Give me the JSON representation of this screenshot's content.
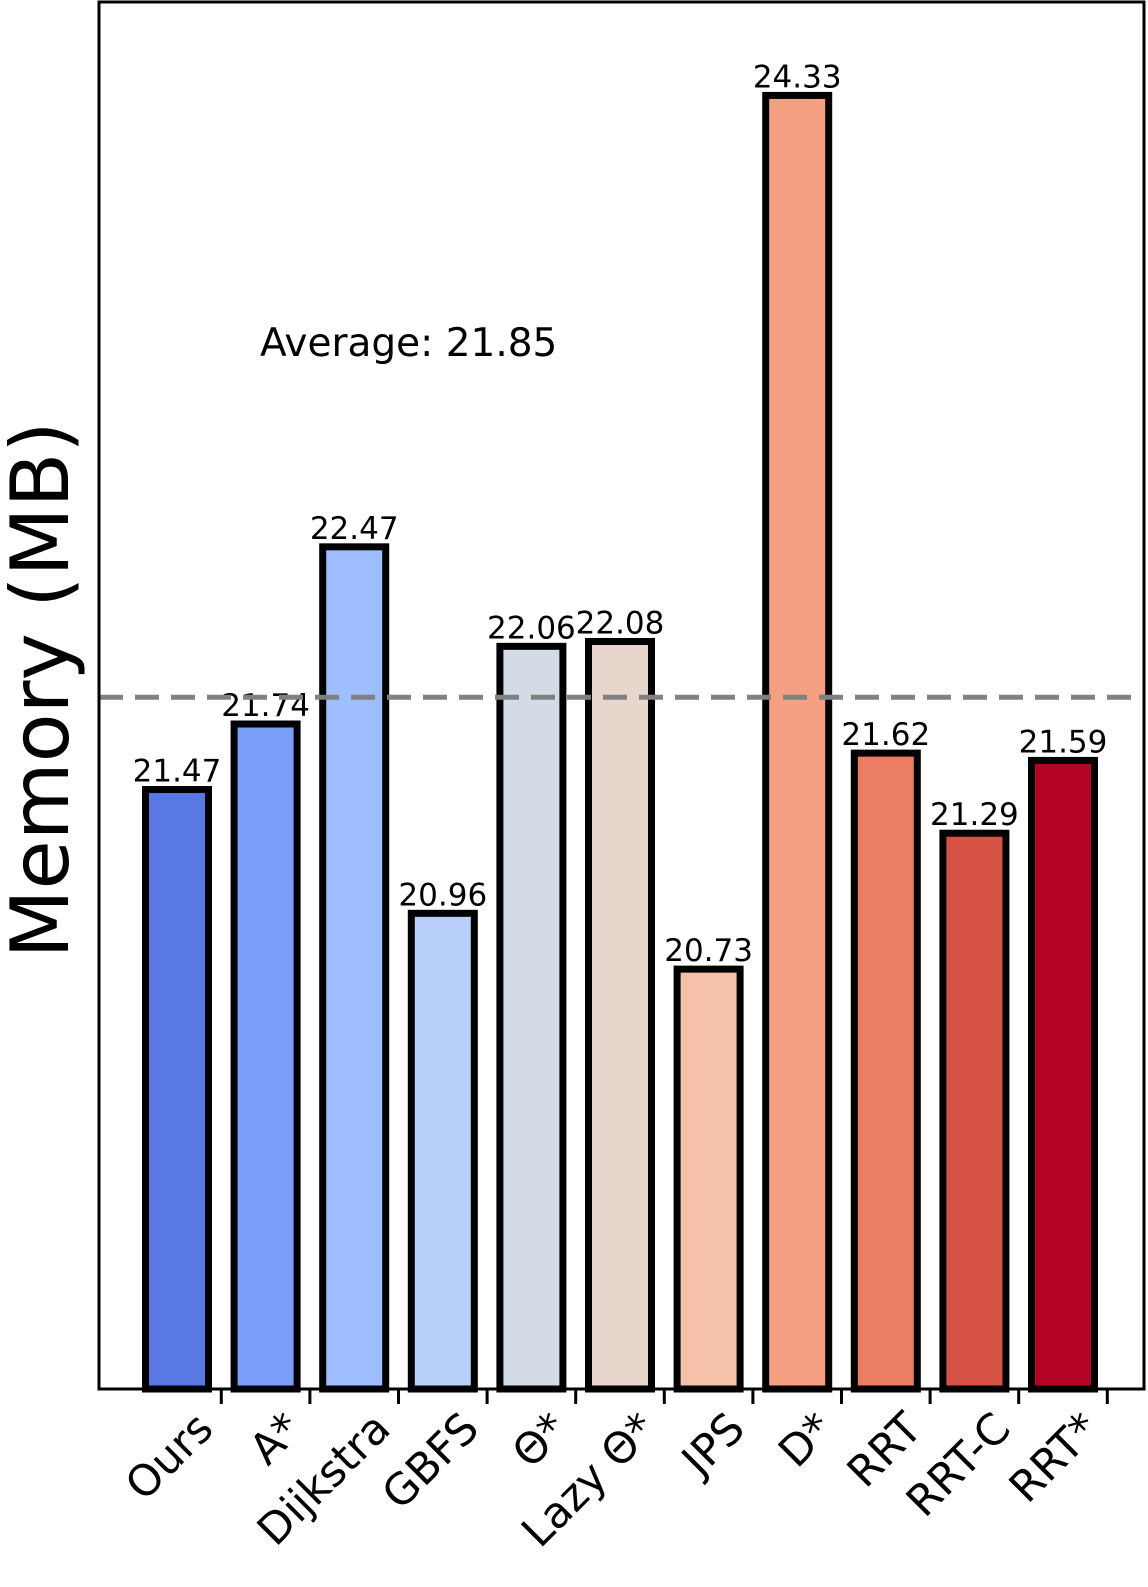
{
  "chart_data": {
    "type": "bar",
    "title": "",
    "xlabel": "",
    "ylabel": "Memory (MB)",
    "categories": [
      "Ours",
      "A*",
      "Dijkstra",
      "GBFS",
      "Θ*",
      "Lazy Θ*",
      "JPS",
      "D*",
      "RRT",
      "RRT-C",
      "RRT*"
    ],
    "values": [
      21.47,
      21.74,
      22.47,
      20.96,
      22.06,
      22.08,
      20.73,
      24.33,
      21.62,
      21.29,
      21.59
    ],
    "value_labels": [
      "21.47",
      "21.74",
      "22.47",
      "20.96",
      "22.06",
      "22.08",
      "20.73",
      "24.33",
      "21.62",
      "21.29",
      "21.59"
    ],
    "colors": [
      "#5a78e4",
      "#7b9ff9",
      "#9ebeff",
      "#b7cff9",
      "#d3dbe7",
      "#e8d6cc",
      "#f5c1a9",
      "#f5a081",
      "#eb7d62",
      "#d65244",
      "#b40426"
    ],
    "ylim": [
      19.0,
      25.1
    ],
    "average": 21.85,
    "average_label": "Average: 21.85",
    "grid": false,
    "legend": "none"
  }
}
